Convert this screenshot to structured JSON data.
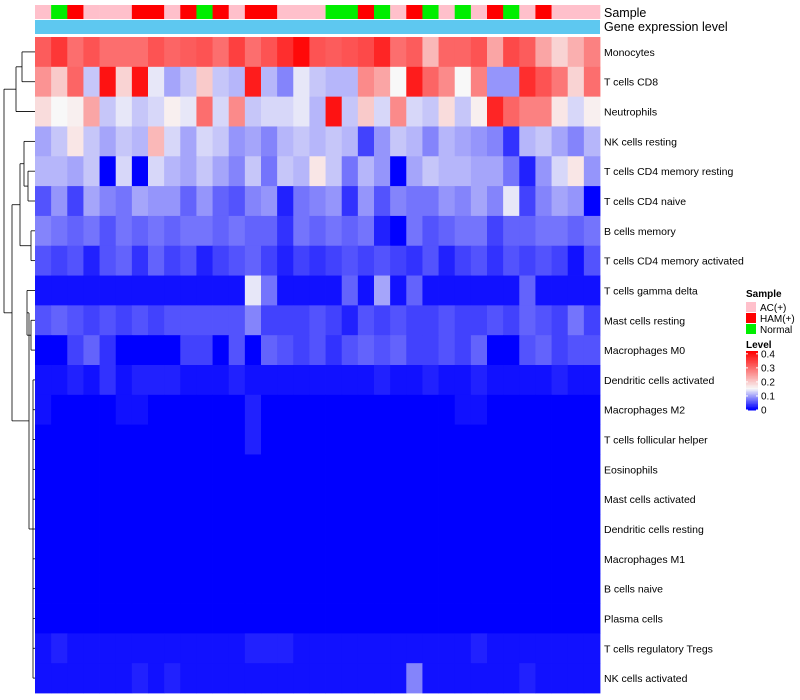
{
  "chart_data": {
    "type": "heatmap",
    "annotation_rows": [
      "Sample",
      "Gene expression level"
    ],
    "rows": [
      "Monocytes",
      "T cells CD8",
      "Neutrophils",
      "NK cells resting",
      "T cells CD4 memory resting",
      "T cells CD4 naive",
      "B cells memory",
      "T cells CD4 memory activated",
      "T cells gamma delta",
      "Mast cells resting",
      "Macrophages M0",
      "Dendritic cells activated",
      "Macrophages M2",
      "T cells follicular helper",
      "Eosinophils",
      "Mast cells activated",
      "Dendritic cells resting",
      "Macrophages M1",
      "B cells naive",
      "Plasma cells",
      "T cells regulatory  Tregs",
      "NK cells activated"
    ],
    "sample_groups": [
      "AC(+)",
      "Normal",
      "HAM(+)",
      "AC(+)",
      "AC(+)",
      "AC(+)",
      "HAM(+)",
      "HAM(+)",
      "AC(+)",
      "HAM(+)",
      "Normal",
      "HAM(+)",
      "AC(+)",
      "HAM(+)",
      "HAM(+)",
      "AC(+)",
      "AC(+)",
      "AC(+)",
      "Normal",
      "Normal",
      "HAM(+)",
      "Normal",
      "AC(+)",
      "HAM(+)",
      "Normal",
      "AC(+)",
      "Normal",
      "AC(+)",
      "HAM(+)",
      "Normal",
      "AC(+)",
      "HAM(+)",
      "AC(+)",
      "AC(+)",
      "AC(+)"
    ],
    "values": [
      [
        0.32,
        0.36,
        0.3,
        0.33,
        0.3,
        0.3,
        0.3,
        0.33,
        0.31,
        0.32,
        0.33,
        0.3,
        0.35,
        0.3,
        0.33,
        0.37,
        0.41,
        0.33,
        0.32,
        0.33,
        0.34,
        0.38,
        0.3,
        0.32,
        0.22,
        0.31,
        0.31,
        0.33,
        0.24,
        0.34,
        0.32,
        0.24,
        0.19,
        0.23,
        0.28
      ],
      [
        0.26,
        0.2,
        0.31,
        0.12,
        0.4,
        0.19,
        0.4,
        0.14,
        0.1,
        0.12,
        0.2,
        0.12,
        0.11,
        0.39,
        0.11,
        0.08,
        0.14,
        0.12,
        0.11,
        0.11,
        0.27,
        0.24,
        0.15,
        0.39,
        0.31,
        0.27,
        0.15,
        0.28,
        0.09,
        0.09,
        0.37,
        0.33,
        0.29,
        0.19,
        0.3
      ],
      [
        0.18,
        0.15,
        0.16,
        0.24,
        0.12,
        0.14,
        0.12,
        0.13,
        0.16,
        0.14,
        0.3,
        0.13,
        0.27,
        0.12,
        0.13,
        0.13,
        0.14,
        0.11,
        0.4,
        0.12,
        0.2,
        0.13,
        0.27,
        0.13,
        0.12,
        0.18,
        0.12,
        0.16,
        0.38,
        0.31,
        0.28,
        0.28,
        0.17,
        0.13,
        0.16
      ],
      [
        0.1,
        0.12,
        0.17,
        0.12,
        0.1,
        0.12,
        0.11,
        0.22,
        0.13,
        0.1,
        0.13,
        0.12,
        0.09,
        0.1,
        0.08,
        0.11,
        0.12,
        0.11,
        0.12,
        0.11,
        0.04,
        0.09,
        0.12,
        0.11,
        0.08,
        0.11,
        0.1,
        0.09,
        0.08,
        0.03,
        0.11,
        0.12,
        0.1,
        0.08,
        0.11
      ],
      [
        0.11,
        0.11,
        0.1,
        0.12,
        0.0,
        0.13,
        0.0,
        0.13,
        0.11,
        0.1,
        0.12,
        0.1,
        0.08,
        0.12,
        0.07,
        0.12,
        0.11,
        0.17,
        0.12,
        0.07,
        0.11,
        0.09,
        0.0,
        0.1,
        0.12,
        0.11,
        0.11,
        0.1,
        0.1,
        0.07,
        0.02,
        0.09,
        0.13,
        0.17,
        0.09
      ],
      [
        0.05,
        0.09,
        0.04,
        0.1,
        0.08,
        0.07,
        0.1,
        0.09,
        0.09,
        0.06,
        0.09,
        0.06,
        0.05,
        0.08,
        0.09,
        0.02,
        0.07,
        0.08,
        0.09,
        0.03,
        0.09,
        0.05,
        0.08,
        0.07,
        0.07,
        0.09,
        0.08,
        0.1,
        0.08,
        0.14,
        0.04,
        0.08,
        0.1,
        0.09,
        0.0
      ],
      [
        0.08,
        0.07,
        0.06,
        0.07,
        0.05,
        0.07,
        0.06,
        0.07,
        0.06,
        0.07,
        0.07,
        0.06,
        0.07,
        0.06,
        0.06,
        0.03,
        0.07,
        0.06,
        0.07,
        0.06,
        0.07,
        0.02,
        0.0,
        0.07,
        0.05,
        0.06,
        0.07,
        0.07,
        0.04,
        0.06,
        0.06,
        0.07,
        0.07,
        0.06,
        0.07
      ],
      [
        0.05,
        0.04,
        0.05,
        0.02,
        0.05,
        0.06,
        0.03,
        0.06,
        0.04,
        0.05,
        0.02,
        0.04,
        0.05,
        0.06,
        0.04,
        0.02,
        0.04,
        0.03,
        0.04,
        0.05,
        0.04,
        0.05,
        0.04,
        0.03,
        0.05,
        0.02,
        0.04,
        0.05,
        0.03,
        0.05,
        0.04,
        0.05,
        0.04,
        0.01,
        0.05
      ],
      [
        0.01,
        0.01,
        0.01,
        0.01,
        0.01,
        0.01,
        0.01,
        0.01,
        0.01,
        0.01,
        0.01,
        0.01,
        0.01,
        0.14,
        0.07,
        0.01,
        0.01,
        0.01,
        0.01,
        0.06,
        0.01,
        0.1,
        0.01,
        0.06,
        0.01,
        0.01,
        0.01,
        0.01,
        0.01,
        0.01,
        0.06,
        0.01,
        0.01,
        0.01,
        0.01
      ],
      [
        0.05,
        0.06,
        0.05,
        0.04,
        0.05,
        0.04,
        0.05,
        0.04,
        0.05,
        0.05,
        0.05,
        0.05,
        0.05,
        0.08,
        0.04,
        0.04,
        0.04,
        0.05,
        0.04,
        0.02,
        0.05,
        0.04,
        0.05,
        0.04,
        0.04,
        0.05,
        0.04,
        0.04,
        0.05,
        0.04,
        0.06,
        0.05,
        0.04,
        0.07,
        0.04
      ],
      [
        0.0,
        0.0,
        0.04,
        0.06,
        0.03,
        0.0,
        0.0,
        0.0,
        0.0,
        0.04,
        0.04,
        0.0,
        0.05,
        0.0,
        0.06,
        0.05,
        0.04,
        0.05,
        0.03,
        0.05,
        0.06,
        0.05,
        0.06,
        0.04,
        0.04,
        0.05,
        0.04,
        0.06,
        0.0,
        0.0,
        0.05,
        0.06,
        0.04,
        0.05,
        0.05
      ],
      [
        0.01,
        0.01,
        0.02,
        0.01,
        0.03,
        0.01,
        0.02,
        0.02,
        0.02,
        0.01,
        0.01,
        0.01,
        0.02,
        0.01,
        0.01,
        0.01,
        0.01,
        0.01,
        0.01,
        0.01,
        0.01,
        0.02,
        0.01,
        0.01,
        0.02,
        0.01,
        0.01,
        0.02,
        0.01,
        0.01,
        0.01,
        0.01,
        0.02,
        0.01,
        0.01
      ],
      [
        0.01,
        0.0,
        0.0,
        0.0,
        0.0,
        0.01,
        0.01,
        0.0,
        0.0,
        0.0,
        0.0,
        0.0,
        0.0,
        0.02,
        0.0,
        0.0,
        0.0,
        0.0,
        0.0,
        0.0,
        0.0,
        0.0,
        0.0,
        0.0,
        0.0,
        0.0,
        0.01,
        0.01,
        0.0,
        0.0,
        0.0,
        0.0,
        0.0,
        0.0,
        0.0
      ],
      [
        0.0,
        0.0,
        0.0,
        0.0,
        0.0,
        0.0,
        0.0,
        0.0,
        0.0,
        0.0,
        0.0,
        0.0,
        0.0,
        0.02,
        0.0,
        0.0,
        0.0,
        0.0,
        0.0,
        0.0,
        0.0,
        0.0,
        0.0,
        0.0,
        0.0,
        0.0,
        0.0,
        0.0,
        0.0,
        0.0,
        0.0,
        0.0,
        0.0,
        0.0,
        0.0
      ],
      [
        0.0,
        0.0,
        0.0,
        0.0,
        0.0,
        0.0,
        0.0,
        0.0,
        0.0,
        0.0,
        0.0,
        0.0,
        0.0,
        0.0,
        0.0,
        0.0,
        0.0,
        0.0,
        0.0,
        0.0,
        0.0,
        0.0,
        0.0,
        0.0,
        0.0,
        0.0,
        0.0,
        0.0,
        0.0,
        0.0,
        0.0,
        0.0,
        0.0,
        0.0,
        0.0
      ],
      [
        0.0,
        0.0,
        0.0,
        0.0,
        0.0,
        0.0,
        0.0,
        0.0,
        0.0,
        0.0,
        0.0,
        0.0,
        0.0,
        0.0,
        0.0,
        0.0,
        0.0,
        0.0,
        0.0,
        0.0,
        0.0,
        0.0,
        0.0,
        0.0,
        0.0,
        0.0,
        0.0,
        0.0,
        0.0,
        0.0,
        0.0,
        0.0,
        0.0,
        0.0,
        0.0
      ],
      [
        0.0,
        0.0,
        0.0,
        0.0,
        0.0,
        0.0,
        0.0,
        0.0,
        0.0,
        0.0,
        0.0,
        0.0,
        0.0,
        0.0,
        0.0,
        0.0,
        0.0,
        0.0,
        0.0,
        0.0,
        0.0,
        0.0,
        0.0,
        0.0,
        0.0,
        0.0,
        0.0,
        0.0,
        0.0,
        0.0,
        0.0,
        0.0,
        0.0,
        0.0,
        0.0
      ],
      [
        0.0,
        0.0,
        0.0,
        0.0,
        0.0,
        0.0,
        0.0,
        0.0,
        0.0,
        0.0,
        0.0,
        0.0,
        0.0,
        0.0,
        0.0,
        0.0,
        0.0,
        0.0,
        0.0,
        0.0,
        0.0,
        0.0,
        0.0,
        0.0,
        0.0,
        0.0,
        0.0,
        0.0,
        0.0,
        0.0,
        0.0,
        0.0,
        0.0,
        0.0,
        0.0
      ],
      [
        0.0,
        0.0,
        0.0,
        0.0,
        0.0,
        0.0,
        0.0,
        0.0,
        0.0,
        0.0,
        0.0,
        0.0,
        0.0,
        0.0,
        0.0,
        0.0,
        0.0,
        0.0,
        0.0,
        0.0,
        0.0,
        0.0,
        0.0,
        0.0,
        0.0,
        0.0,
        0.0,
        0.0,
        0.0,
        0.0,
        0.0,
        0.0,
        0.0,
        0.0,
        0.0
      ],
      [
        0.0,
        0.0,
        0.0,
        0.0,
        0.0,
        0.0,
        0.0,
        0.0,
        0.0,
        0.0,
        0.0,
        0.0,
        0.0,
        0.0,
        0.0,
        0.0,
        0.0,
        0.0,
        0.0,
        0.0,
        0.0,
        0.0,
        0.0,
        0.0,
        0.0,
        0.0,
        0.0,
        0.0,
        0.0,
        0.0,
        0.0,
        0.0,
        0.0,
        0.0,
        0.0
      ],
      [
        0.01,
        0.02,
        0.01,
        0.01,
        0.01,
        0.01,
        0.01,
        0.01,
        0.01,
        0.01,
        0.01,
        0.01,
        0.01,
        0.02,
        0.02,
        0.02,
        0.01,
        0.01,
        0.01,
        0.01,
        0.01,
        0.01,
        0.01,
        0.01,
        0.01,
        0.01,
        0.01,
        0.02,
        0.01,
        0.01,
        0.01,
        0.01,
        0.01,
        0.01,
        0.01
      ],
      [
        0.01,
        0.01,
        0.01,
        0.01,
        0.01,
        0.01,
        0.02,
        0.01,
        0.02,
        0.01,
        0.01,
        0.01,
        0.01,
        0.01,
        0.01,
        0.01,
        0.01,
        0.01,
        0.01,
        0.01,
        0.01,
        0.01,
        0.01,
        0.08,
        0.01,
        0.01,
        0.01,
        0.01,
        0.01,
        0.01,
        0.02,
        0.01,
        0.01,
        0.01,
        0.01
      ]
    ],
    "legend": {
      "sample": {
        "title": "Sample",
        "entries": [
          {
            "label": "AC(+)",
            "color": "#ffc0cb"
          },
          {
            "label": "HAM(+)",
            "color": "#ff0000"
          },
          {
            "label": "Normal",
            "color": "#00ee00"
          }
        ]
      },
      "level": {
        "title": "Level",
        "ticks": [
          "0.4",
          "0.3",
          "0.2",
          "0.1",
          "0"
        ],
        "tick_values": [
          0.4,
          0.3,
          0.2,
          0.1,
          0
        ],
        "range": [
          0,
          0.42
        ],
        "low_color": "#0000ff",
        "mid_color": "#f8f8f8",
        "high_color": "#ff0000",
        "mid_value": 0.15
      }
    },
    "gene_expression_color": "#5ec8f0"
  }
}
